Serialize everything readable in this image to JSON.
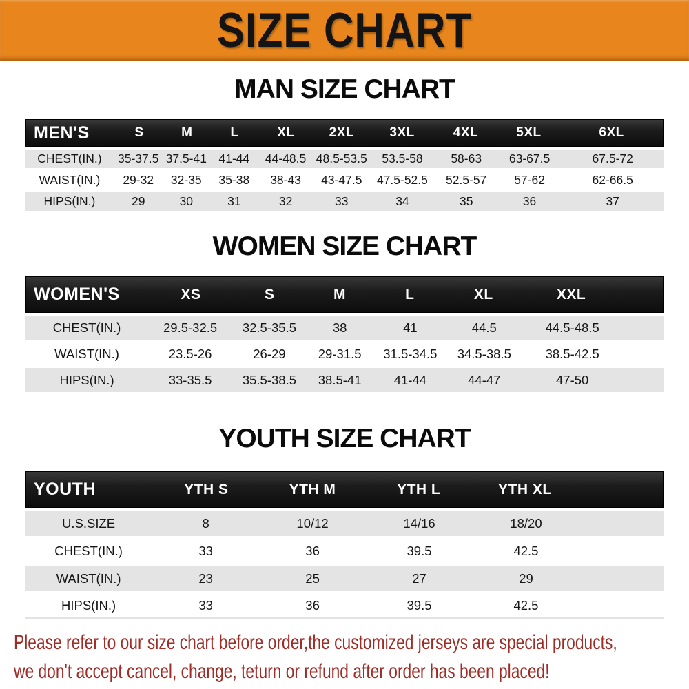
{
  "banner": {
    "title": "SIZE CHART"
  },
  "sections": {
    "men": {
      "title": "MAN SIZE CHART",
      "header": [
        "MEN'S",
        "S",
        "M",
        "L",
        "XL",
        "2XL",
        "3XL",
        "4XL",
        "5XL",
        "6XL"
      ],
      "rows": [
        {
          "label": "CHEST(IN.)",
          "values": [
            "35-37.5",
            "37.5-41",
            "41-44",
            "44-48.5",
            "48.5-53.5",
            "53.5-58",
            "58-63",
            "63-67.5",
            "67.5-72"
          ]
        },
        {
          "label": "WAIST(IN.)",
          "values": [
            "29-32",
            "32-35",
            "35-38",
            "38-43",
            "43-47.5",
            "47.5-52.5",
            "52.5-57",
            "57-62",
            "62-66.5"
          ]
        },
        {
          "label": "HIPS(IN.)",
          "values": [
            "29",
            "30",
            "31",
            "32",
            "33",
            "34",
            "35",
            "36",
            "37"
          ]
        }
      ]
    },
    "women": {
      "title": "WOMEN SIZE CHART",
      "header": [
        "WOMEN'S",
        "XS",
        "S",
        "M",
        "L",
        "XL",
        "XXL"
      ],
      "rows": [
        {
          "label": "CHEST(IN.)",
          "values": [
            "29.5-32.5",
            "32.5-35.5",
            "38",
            "41",
            "44.5",
            "44.5-48.5"
          ]
        },
        {
          "label": "WAIST(IN.)",
          "values": [
            "23.5-26",
            "26-29",
            "29-31.5",
            "31.5-34.5",
            "34.5-38.5",
            "38.5-42.5"
          ]
        },
        {
          "label": "HIPS(IN.)",
          "values": [
            "33-35.5",
            "35.5-38.5",
            "38.5-41",
            "41-44",
            "44-47",
            "47-50"
          ]
        }
      ]
    },
    "youth": {
      "title": "YOUTH SIZE CHART",
      "header": [
        "YOUTH",
        "YTH S",
        "YTH M",
        "YTH L",
        "YTH XL"
      ],
      "rows": [
        {
          "label": "U.S.SIZE",
          "values": [
            "8",
            "10/12",
            "14/16",
            "18/20"
          ]
        },
        {
          "label": "CHEST(IN.)",
          "values": [
            "33",
            "36",
            "39.5",
            "42.5"
          ]
        },
        {
          "label": "WAIST(IN.)",
          "values": [
            "23",
            "25",
            "27",
            "29"
          ]
        },
        {
          "label": "HIPS(IN.)",
          "values": [
            "33",
            "36",
            "39.5",
            "42.5"
          ]
        }
      ]
    }
  },
  "footer": {
    "line1": "Please refer to our size chart before order,the customized jerseys are special products,",
    "line2": "we don't accept cancel, change, teturn or refund after order has been placed!"
  },
  "colors": {
    "banner_bg": "#e8861d",
    "header_bar_bg": "#1a1a1a",
    "row_alt_bg": "#e4e4e4",
    "footer_text": "#9f2d27",
    "title_text": "#0b0b0b"
  }
}
